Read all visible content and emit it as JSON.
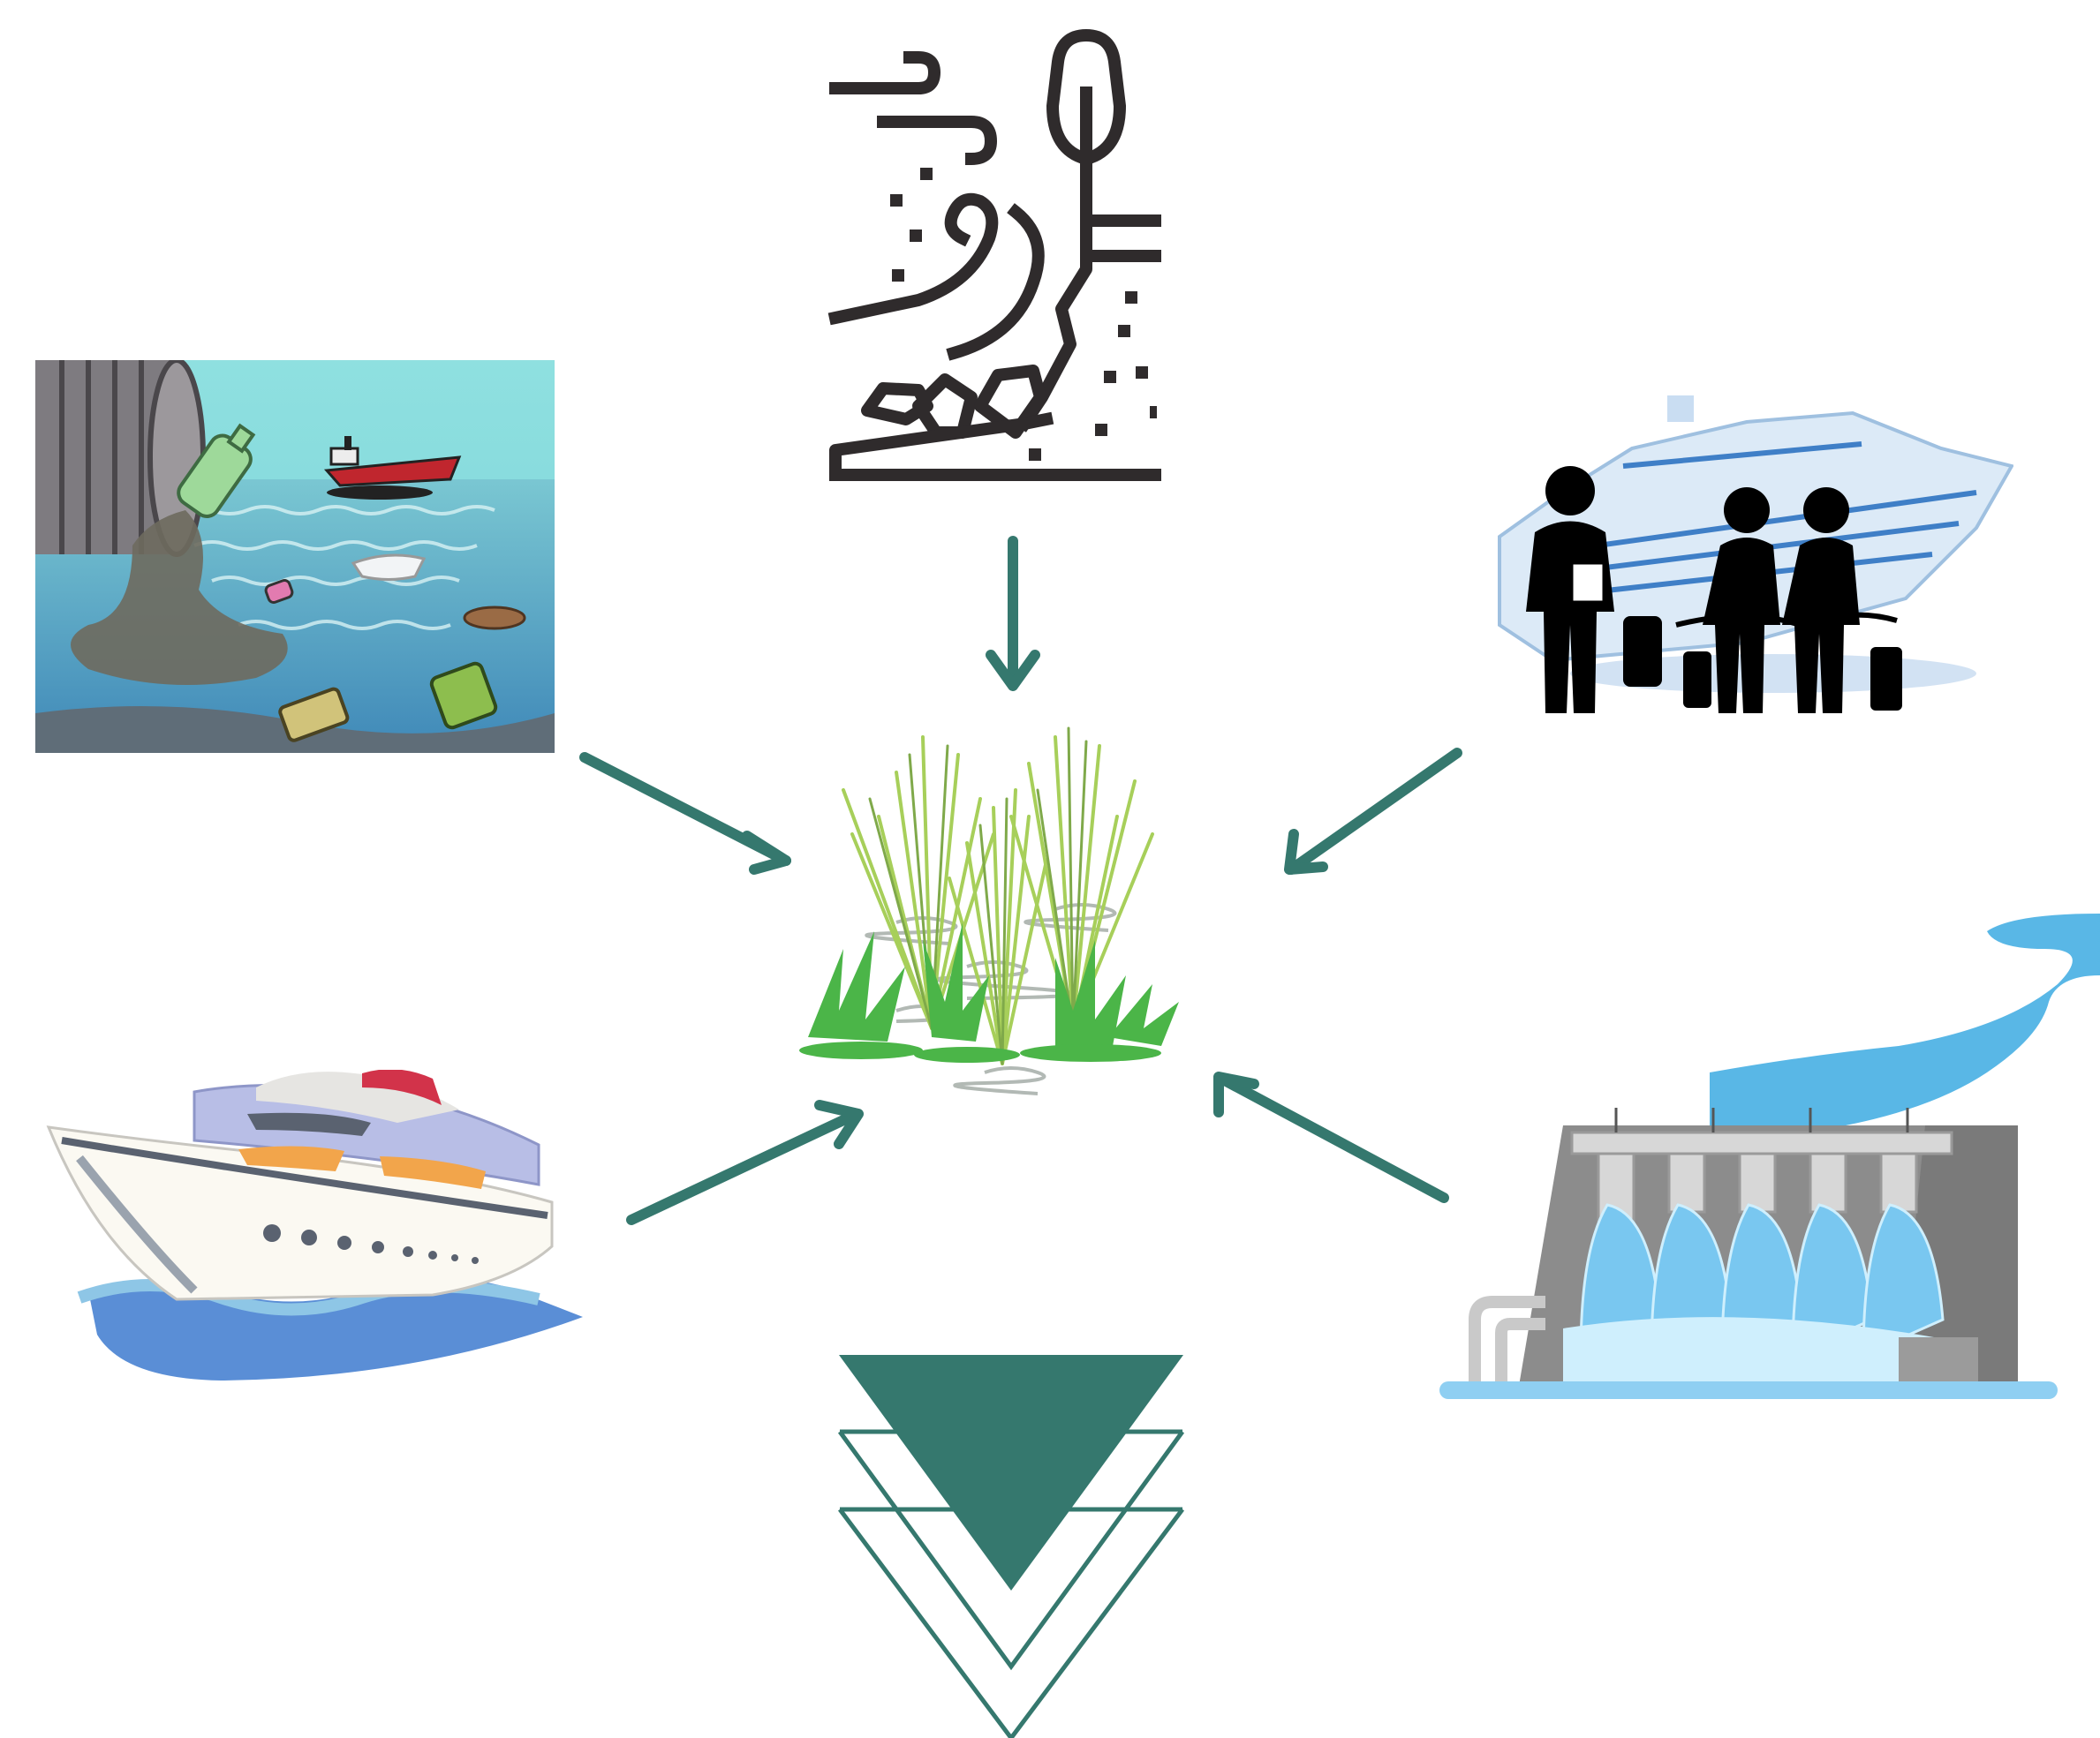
{
  "colors": {
    "arrow": "#35786E",
    "icon_dark": "#2F2B2C",
    "water_light": "#7ED3D8",
    "water_deep": "#3F88B8",
    "grass_light": "#A7CF5A",
    "grass_green": "#4BB548",
    "boat_blue": "#5A8ED6",
    "dam_gray": "#8C8C8C",
    "dam_water": "#59B7E6"
  },
  "nodes": {
    "center": {
      "icon": "wetland-grass-icon"
    },
    "top": {
      "icon": "coastal-erosion-icon"
    },
    "top_left": {
      "icon": "water-pollution-icon"
    },
    "top_right": {
      "icon": "cruise-tourism-icon"
    },
    "bottom_left": {
      "icon": "motor-yacht-icon"
    },
    "bottom_right": {
      "icon": "hydroelectric-dam-icon"
    },
    "bottom": {
      "icon": "down-chevron-triangle-icon"
    }
  }
}
